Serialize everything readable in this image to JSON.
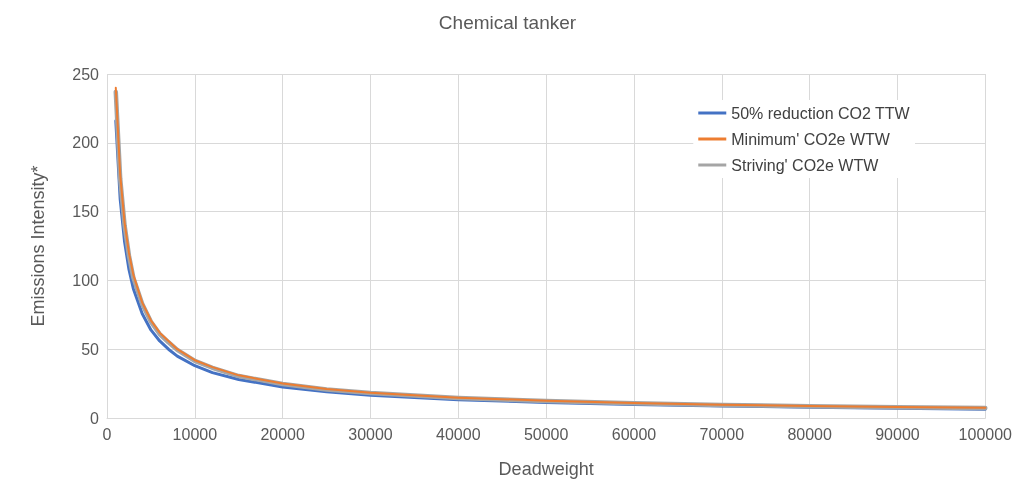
{
  "chart_data": {
    "type": "line",
    "title": "Chemical tanker",
    "xlabel": "Deadweight",
    "ylabel": "Emissions Intensity*",
    "x": [
      1000,
      1500,
      2000,
      2500,
      3000,
      4000,
      5000,
      6000,
      7000,
      8000,
      10000,
      12000,
      15000,
      20000,
      25000,
      30000,
      40000,
      50000,
      60000,
      70000,
      80000,
      90000,
      100000
    ],
    "series": [
      {
        "name": "50% reduction CO2 TTW",
        "color": "#4472c4",
        "values": [
          216,
          159,
          128,
          108,
          94,
          76,
          64,
          56,
          50,
          45,
          38,
          33,
          28,
          22.5,
          19,
          16.6,
          13.3,
          11.3,
          9.8,
          8.7,
          7.9,
          7.0,
          6.3
        ]
      },
      {
        "name": "Minimum' CO2e WTW",
        "color": "#ed7d31",
        "values": [
          240,
          177,
          142,
          120,
          104,
          84,
          71,
          62,
          56,
          50,
          42,
          37,
          31,
          25,
          21,
          18.4,
          14.8,
          12.6,
          10.9,
          9.7,
          8.8,
          8,
          7.4
        ]
      },
      {
        "name": "Striving' CO2e WTW",
        "color": "#a5a5a5",
        "values": [
          237,
          174,
          140,
          118,
          102,
          83,
          70,
          61,
          55,
          49.5,
          41.5,
          36.5,
          30.5,
          24.7,
          20.7,
          18.1,
          14.5,
          12.3,
          10.7,
          9.5,
          8.6,
          7.9,
          7.3
        ]
      }
    ],
    "xlim": [
      0,
      100000
    ],
    "xticks": [
      0,
      10000,
      20000,
      30000,
      40000,
      50000,
      60000,
      70000,
      80000,
      90000,
      100000
    ],
    "ylim": [
      0,
      250
    ],
    "yticks": [
      0,
      50,
      100,
      150,
      200,
      250
    ],
    "grid": true,
    "legend": "top right",
    "marker": "none",
    "line_style": "solid"
  }
}
